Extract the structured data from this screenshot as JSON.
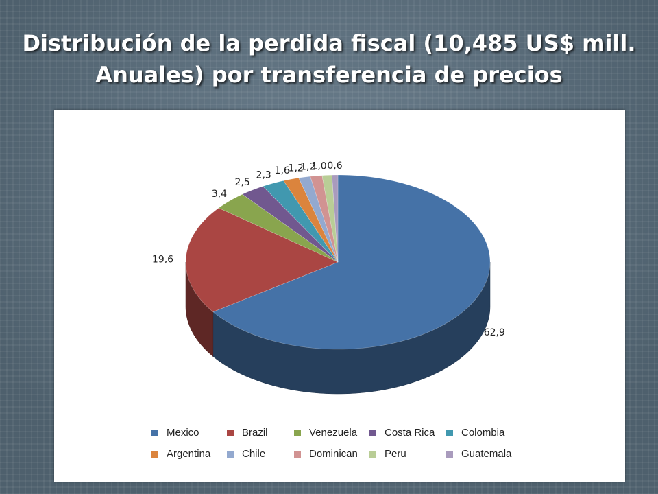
{
  "slide": {
    "title_line1": "Distribución de la perdida fiscal (10,485 US$ mill.",
    "title_line2": "Anuales) por transferencia de precios"
  },
  "chart_data": {
    "type": "pie",
    "style": "3d",
    "legend_position": "bottom",
    "title": "",
    "categories": [
      "Mexico",
      "Brazil",
      "Venezuela",
      "Costa Rica",
      "Colombia",
      "Argentina",
      "Chile",
      "Dominican",
      "Peru",
      "Guatemala"
    ],
    "values": [
      62.9,
      19.6,
      3.4,
      2.5,
      2.3,
      1.6,
      1.2,
      1.2,
      1.0,
      0.6
    ],
    "labels": [
      "62,9",
      "19,6",
      "3,4",
      "2,5",
      "2,3",
      "1,6",
      "1,2",
      "1,2",
      "1,0",
      "0,6"
    ],
    "colors": [
      "#4572a7",
      "#aa4643",
      "#89a54e",
      "#71588f",
      "#4198af",
      "#db843d",
      "#93a9cf",
      "#d19392",
      "#b9cd96",
      "#a99bbd"
    ]
  }
}
